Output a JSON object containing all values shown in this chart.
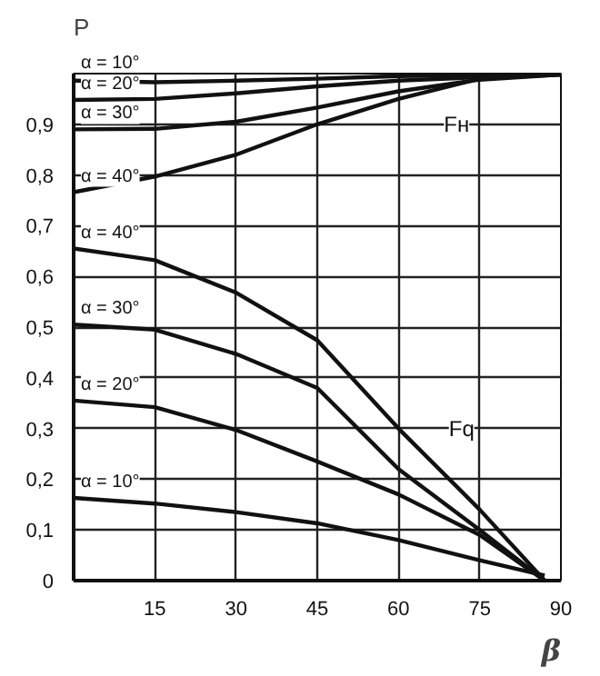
{
  "chart_data": {
    "type": "line",
    "ylabel": "P",
    "xlabel": "β",
    "x": [
      0,
      15,
      30,
      45,
      60,
      75,
      90
    ],
    "series": [
      {
        "name": "α = 10°",
        "color": "#111111",
        "values": [
          0.986,
          0.983,
          0.986,
          0.99,
          0.995,
          0.997,
          0.999
        ]
      },
      {
        "name": "α = 20°",
        "color": "#111111",
        "values": [
          0.948,
          0.95,
          0.961,
          0.975,
          0.986,
          0.993,
          0.998
        ]
      },
      {
        "name": "α = 30°",
        "color": "#111111",
        "values": [
          0.89,
          0.891,
          0.905,
          0.933,
          0.965,
          0.988,
          0.998
        ]
      },
      {
        "name": "α = 40°",
        "color": "#111111",
        "values": [
          0.766,
          0.797,
          0.84,
          0.9,
          0.95,
          0.99,
          0.998
        ]
      },
      {
        "name": "α = 40°",
        "color": "#111111",
        "x": [
          0,
          15,
          30,
          45,
          60,
          75,
          87
        ],
        "values": [
          0.655,
          0.632,
          0.568,
          0.474,
          0.3,
          0.14,
          0
        ]
      },
      {
        "name": "α = 30°",
        "color": "#111111",
        "x": [
          0,
          15,
          30,
          45,
          60,
          75,
          87
        ],
        "values": [
          0.505,
          0.495,
          0.447,
          0.38,
          0.22,
          0.1,
          0
        ]
      },
      {
        "name": "α = 20°",
        "color": "#111111",
        "x": [
          0,
          15,
          30,
          45,
          60,
          75,
          87
        ],
        "values": [
          0.355,
          0.342,
          0.297,
          0.235,
          0.17,
          0.09,
          0
        ]
      },
      {
        "name": "α = 10°",
        "color": "#111111",
        "x": [
          0,
          15,
          30,
          45,
          60,
          75,
          87
        ],
        "values": [
          0.163,
          0.152,
          0.135,
          0.113,
          0.08,
          0.04,
          0.01
        ]
      }
    ],
    "annotations": [
      "Fн",
      "Fq"
    ],
    "xlim": [
      0,
      90
    ],
    "ylim": [
      0,
      1.0
    ],
    "xticks": [
      {
        "value": 0,
        "label": null
      },
      15,
      30,
      45,
      60,
      75,
      90
    ],
    "yticks": [
      {
        "value": 0,
        "label": "0"
      },
      {
        "value": 0.1,
        "label": "0,1"
      },
      {
        "value": 0.2,
        "label": "0,2"
      },
      {
        "value": 0.3,
        "label": "0,3"
      },
      {
        "value": 0.4,
        "label": "0,4"
      },
      {
        "value": 0.5,
        "label": "0,5"
      },
      {
        "value": 0.6,
        "label": "0,6"
      },
      {
        "value": 0.7,
        "label": "0,7"
      },
      {
        "value": 0.8,
        "label": "0,8"
      },
      {
        "value": 0.9,
        "label": "0,9"
      },
      {
        "value": 1.0,
        "label": null
      }
    ],
    "grid": true,
    "line_style": "solid",
    "marker": "none"
  }
}
